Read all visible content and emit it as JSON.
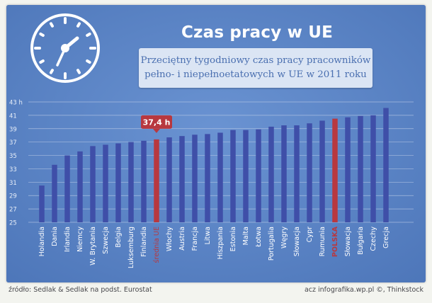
{
  "header": {
    "title": "Czas pracy w UE",
    "subtitle_line1": "Przeciętny tygodniowy czas pracy pracowników",
    "subtitle_line2": "pełno- i niepełnoetatowych w UE w 2011 roku"
  },
  "footer": {
    "source": "źródło: Sedlak & Sedlak na podst. Eurostat",
    "credit": "acz infografika.wp.pl ©, Thinkstock"
  },
  "colors": {
    "background": "#5b85c6",
    "bar": "#3f4fa8",
    "highlight": "#b8383f",
    "grid": "#bccbe6",
    "tick_text": "#e8eef8",
    "label_text": "#ffffff"
  },
  "chart_data": {
    "type": "bar",
    "y_tick_labels": [
      "43 h",
      "41",
      "39",
      "37",
      "35",
      "33",
      "31",
      "29",
      "27",
      "25"
    ],
    "ylim": [
      25,
      43
    ],
    "grid": true,
    "categories": [
      "Holandia",
      "Dania",
      "Irlandia",
      "Niemcy",
      "W. Brytania",
      "Szwecja",
      "Belgia",
      "Luksemburg",
      "Finlandia",
      "średnia UE",
      "Włochy",
      "Austria",
      "Francja",
      "Litwa",
      "Hiszpania",
      "Estonia",
      "Malta",
      "Łotwa",
      "Portugalia",
      "Węgry",
      "Słowacja",
      "Cypr",
      "Rumunia",
      "POLSKA",
      "Słowacja",
      "Bułgaria",
      "Czechy",
      "Grecja"
    ],
    "values": [
      30.5,
      33.6,
      35.0,
      35.6,
      36.4,
      36.6,
      36.8,
      37.0,
      37.2,
      37.4,
      37.7,
      37.9,
      38.1,
      38.2,
      38.4,
      38.8,
      38.8,
      38.9,
      39.3,
      39.5,
      39.5,
      39.8,
      40.2,
      40.5,
      40.7,
      40.9,
      41.0,
      42.1
    ],
    "highlighted": [
      "średnia UE",
      "POLSKA"
    ],
    "annotation": {
      "category": "średnia UE",
      "text": "37,4 h"
    }
  }
}
